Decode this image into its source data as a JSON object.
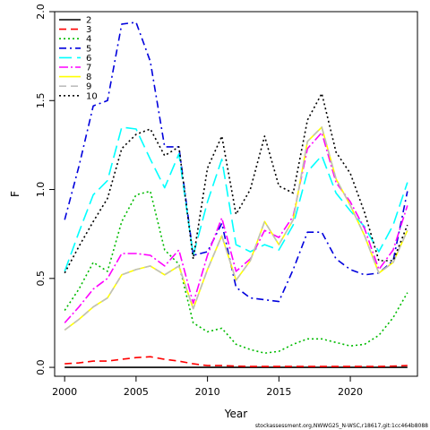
{
  "chart_data": {
    "type": "line",
    "xlabel": "Year",
    "ylabel": "F",
    "xlim": [
      1999.3,
      2024.7
    ],
    "ylim": [
      -0.05,
      2.0
    ],
    "xticks": [
      2000,
      2005,
      2010,
      2015,
      2020
    ],
    "yticks": [
      0.0,
      0.5,
      1.0,
      1.5,
      2.0
    ],
    "yticklabels": [
      "0.0",
      "0.5",
      "1.0",
      "1.5",
      "2.0"
    ],
    "legend_position": "top-left",
    "grid": false,
    "x": [
      2000,
      2001,
      2002,
      2003,
      2004,
      2005,
      2006,
      2007,
      2008,
      2009,
      2010,
      2011,
      2012,
      2013,
      2014,
      2015,
      2016,
      2017,
      2018,
      2019,
      2020,
      2021,
      2022,
      2023,
      2024
    ],
    "series": [
      {
        "name": "2",
        "color": "#000000",
        "dash": "",
        "values": [
          0.0,
          0.0,
          0.0,
          0.0,
          0.0,
          0.0,
          0.0,
          0.0,
          0.0,
          0.0,
          0.0,
          0.0,
          0.0,
          0.0,
          0.0,
          0.0,
          0.0,
          0.0,
          0.0,
          0.0,
          0.0,
          0.0,
          0.0,
          0.0,
          0.0
        ]
      },
      {
        "name": "3",
        "color": "#ff0000",
        "dash": "8,5",
        "values": [
          0.02,
          0.025,
          0.035,
          0.035,
          0.045,
          0.055,
          0.06,
          0.045,
          0.035,
          0.02,
          0.01,
          0.01,
          0.007,
          0.005,
          0.005,
          0.005,
          0.005,
          0.005,
          0.005,
          0.005,
          0.005,
          0.005,
          0.005,
          0.007,
          0.01
        ]
      },
      {
        "name": "4",
        "color": "#00bb00",
        "dash": "2,3",
        "values": [
          0.32,
          0.44,
          0.59,
          0.54,
          0.82,
          0.97,
          0.99,
          0.66,
          0.58,
          0.25,
          0.2,
          0.22,
          0.13,
          0.1,
          0.08,
          0.09,
          0.13,
          0.16,
          0.16,
          0.14,
          0.12,
          0.13,
          0.18,
          0.28,
          0.42
        ]
      },
      {
        "name": "5",
        "color": "#0000dd",
        "dash": "8,4,2,4",
        "values": [
          0.83,
          1.13,
          1.47,
          1.5,
          1.93,
          1.94,
          1.72,
          1.24,
          1.24,
          0.63,
          0.65,
          0.81,
          0.45,
          0.39,
          0.38,
          0.37,
          0.55,
          0.76,
          0.76,
          0.61,
          0.55,
          0.52,
          0.53,
          0.6,
          0.99
        ]
      },
      {
        "name": "6",
        "color": "#00ffff",
        "dash": "14,6",
        "values": [
          0.54,
          0.76,
          0.97,
          1.05,
          1.35,
          1.34,
          1.17,
          1.01,
          1.2,
          0.63,
          0.93,
          1.17,
          0.69,
          0.65,
          0.69,
          0.66,
          0.8,
          1.1,
          1.19,
          0.98,
          0.88,
          0.79,
          0.65,
          0.8,
          1.04
        ]
      },
      {
        "name": "7",
        "color": "#ff00ff",
        "dash": "10,3,2,3",
        "values": [
          0.25,
          0.34,
          0.44,
          0.5,
          0.64,
          0.64,
          0.63,
          0.57,
          0.66,
          0.36,
          0.63,
          0.84,
          0.54,
          0.61,
          0.77,
          0.73,
          0.85,
          1.23,
          1.32,
          1.04,
          0.93,
          0.78,
          0.55,
          0.66,
          0.91
        ]
      },
      {
        "name": "8",
        "color": "#ffff00",
        "dash": "",
        "values": [
          0.21,
          0.27,
          0.34,
          0.39,
          0.52,
          0.55,
          0.57,
          0.52,
          0.57,
          0.33,
          0.55,
          0.74,
          0.49,
          0.6,
          0.82,
          0.69,
          0.83,
          1.27,
          1.35,
          1.06,
          0.91,
          0.74,
          0.53,
          0.59,
          0.77
        ]
      },
      {
        "name": "9",
        "color": "#bebebe",
        "dash": "8,5",
        "values": [
          0.21,
          0.27,
          0.34,
          0.39,
          0.52,
          0.55,
          0.57,
          0.52,
          0.57,
          0.33,
          0.55,
          0.74,
          0.49,
          0.6,
          0.82,
          0.69,
          0.83,
          1.27,
          1.35,
          1.06,
          0.91,
          0.74,
          0.53,
          0.59,
          0.77
        ]
      },
      {
        "name": "10",
        "color": "#000000",
        "dash": "2,3",
        "values": [
          0.53,
          0.68,
          0.82,
          0.95,
          1.23,
          1.31,
          1.34,
          1.19,
          1.24,
          0.61,
          1.12,
          1.3,
          0.86,
          1.0,
          1.3,
          1.02,
          0.98,
          1.39,
          1.54,
          1.21,
          1.09,
          0.87,
          0.6,
          0.6,
          0.8
        ]
      }
    ]
  },
  "footer": "stockassessment.org,NWWG25_N-WSC,r18617,git:1cc464b8088"
}
